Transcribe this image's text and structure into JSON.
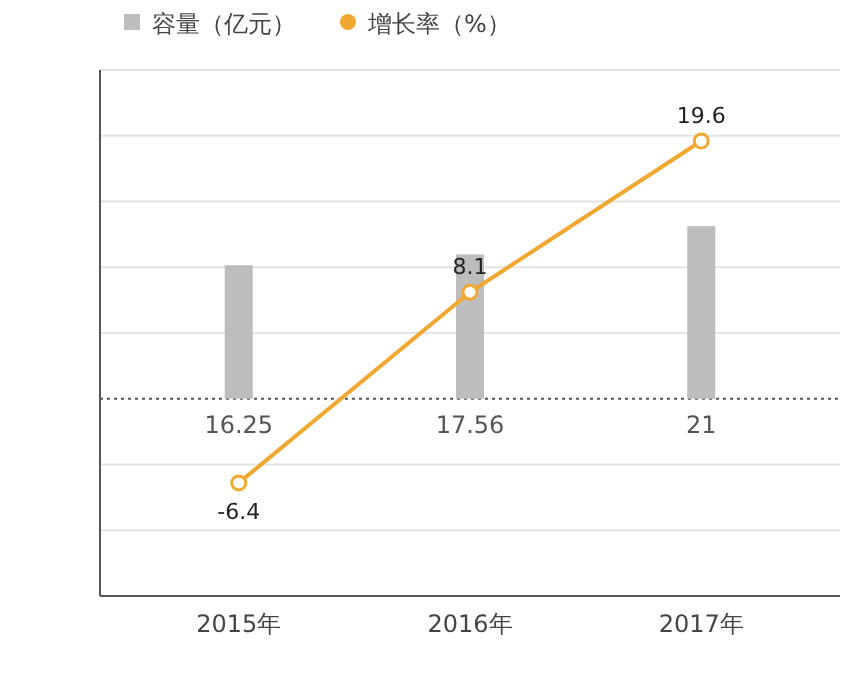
{
  "chart_data": {
    "type": "bar",
    "categories": [
      "2015年",
      "2016年",
      "2017年"
    ],
    "series": [
      {
        "name": "容量（亿元）",
        "color": "#bdbdbd",
        "values": [
          16.25,
          17.56,
          21
        ],
        "axis": "y2"
      },
      {
        "name": "增长率（%）",
        "type": "line",
        "color": "#f0a830",
        "values": [
          -6.4,
          8.1,
          19.6
        ],
        "marker": "circle"
      }
    ],
    "data_labels": true,
    "legend": "top left",
    "grid": "y",
    "ylim": [
      -15,
      25
    ],
    "yticks": [
      {
        "value": -15,
        "label": null
      },
      {
        "value": -10,
        "label": null
      },
      {
        "value": -5,
        "label": null
      },
      {
        "value": 5,
        "label": null
      },
      {
        "value": 10,
        "label": null
      },
      {
        "value": 15,
        "label": null
      },
      {
        "value": 20,
        "label": null
      },
      {
        "value": 25,
        "label": null
      }
    ],
    "y2lim": [
      -24,
      40
    ],
    "ref_lines": [
      {
        "axis": "y",
        "value": 0,
        "line_style": "dotted",
        "color": "#555555"
      }
    ]
  }
}
